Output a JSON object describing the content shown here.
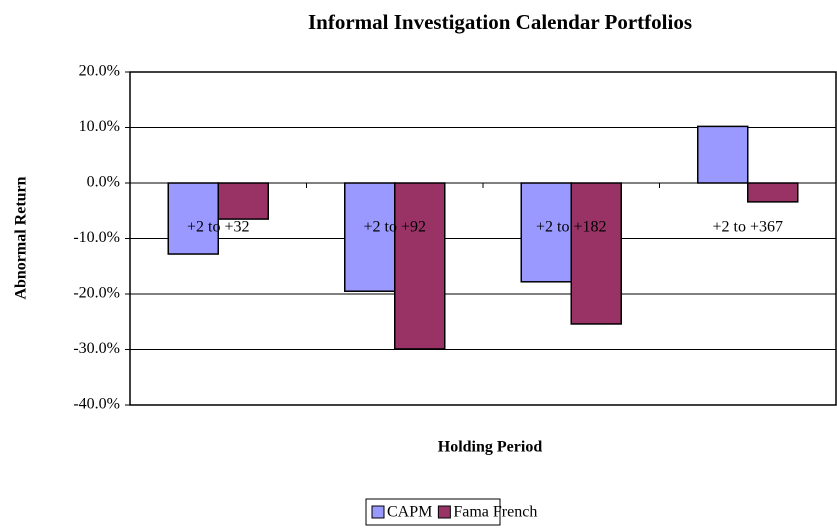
{
  "chart_data": {
    "type": "bar",
    "title": "Informal Investigation Calendar Portfolios",
    "x_label": "Holding Period",
    "y_label": "Abnormal Return",
    "categories": [
      "+2 to +32",
      "+2 to +92",
      "+2 to +182",
      "+2 to +367"
    ],
    "series": [
      {
        "name": "CAPM",
        "color": "#9999ff",
        "values": [
          -12.8,
          -19.5,
          -17.8,
          10.2
        ]
      },
      {
        "name": "Fama French",
        "color": "#993366",
        "values": [
          -6.5,
          -29.9,
          -25.4,
          -3.4
        ]
      }
    ],
    "ylim": [
      -40,
      20
    ],
    "yticks": [
      {
        "value": -40,
        "label": "-40.0%"
      },
      {
        "value": -30,
        "label": "-30.0%"
      },
      {
        "value": -20,
        "label": "-20.0%"
      },
      {
        "value": -10,
        "label": "-10.0%"
      },
      {
        "value": 0,
        "label": "0.0%"
      },
      {
        "value": 10,
        "label": "10.0%"
      },
      {
        "value": 20,
        "label": "20.0%"
      }
    ],
    "grid": true,
    "legend": "bottom"
  }
}
